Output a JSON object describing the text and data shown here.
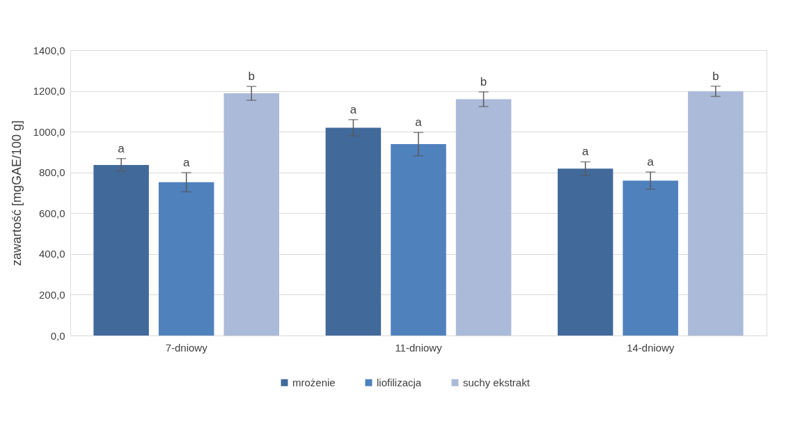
{
  "chart_data": {
    "type": "bar",
    "ylabel": "zawartość [mgGAE/100 g]",
    "categories": [
      "7-dniowy",
      "11-dniowy",
      "14-dniowy"
    ],
    "series": [
      {
        "name": "mrożenie",
        "color": "#416a9b",
        "values": [
          837,
          1019,
          819
        ],
        "errors": [
          31,
          40,
          33
        ],
        "value_labels": [
          "a",
          "a",
          "a"
        ]
      },
      {
        "name": "liofilizacja",
        "color": "#4f81bd",
        "values": [
          752,
          939,
          760
        ],
        "errors": [
          47,
          57,
          42
        ],
        "value_labels": [
          "a",
          "a",
          "a"
        ]
      },
      {
        "name": "suchy ekstrakt",
        "color": "#abbad9",
        "values": [
          1188,
          1159,
          1198
        ],
        "errors": [
          34,
          36,
          25
        ],
        "value_labels": [
          "b",
          "b",
          "b"
        ]
      }
    ],
    "ylim": [
      0,
      1400
    ],
    "yticks": [
      {
        "value": 0,
        "label": "0,0"
      },
      {
        "value": 200,
        "label": "200,0"
      },
      {
        "value": 400,
        "label": "400,0"
      },
      {
        "value": 600,
        "label": "600,0"
      },
      {
        "value": 800,
        "label": "800,0"
      },
      {
        "value": 1000,
        "label": "1000,0"
      },
      {
        "value": 1200,
        "label": "1200,0"
      },
      {
        "value": 1400,
        "label": "1400,0"
      }
    ],
    "grid": "y",
    "legend": "bottom"
  }
}
